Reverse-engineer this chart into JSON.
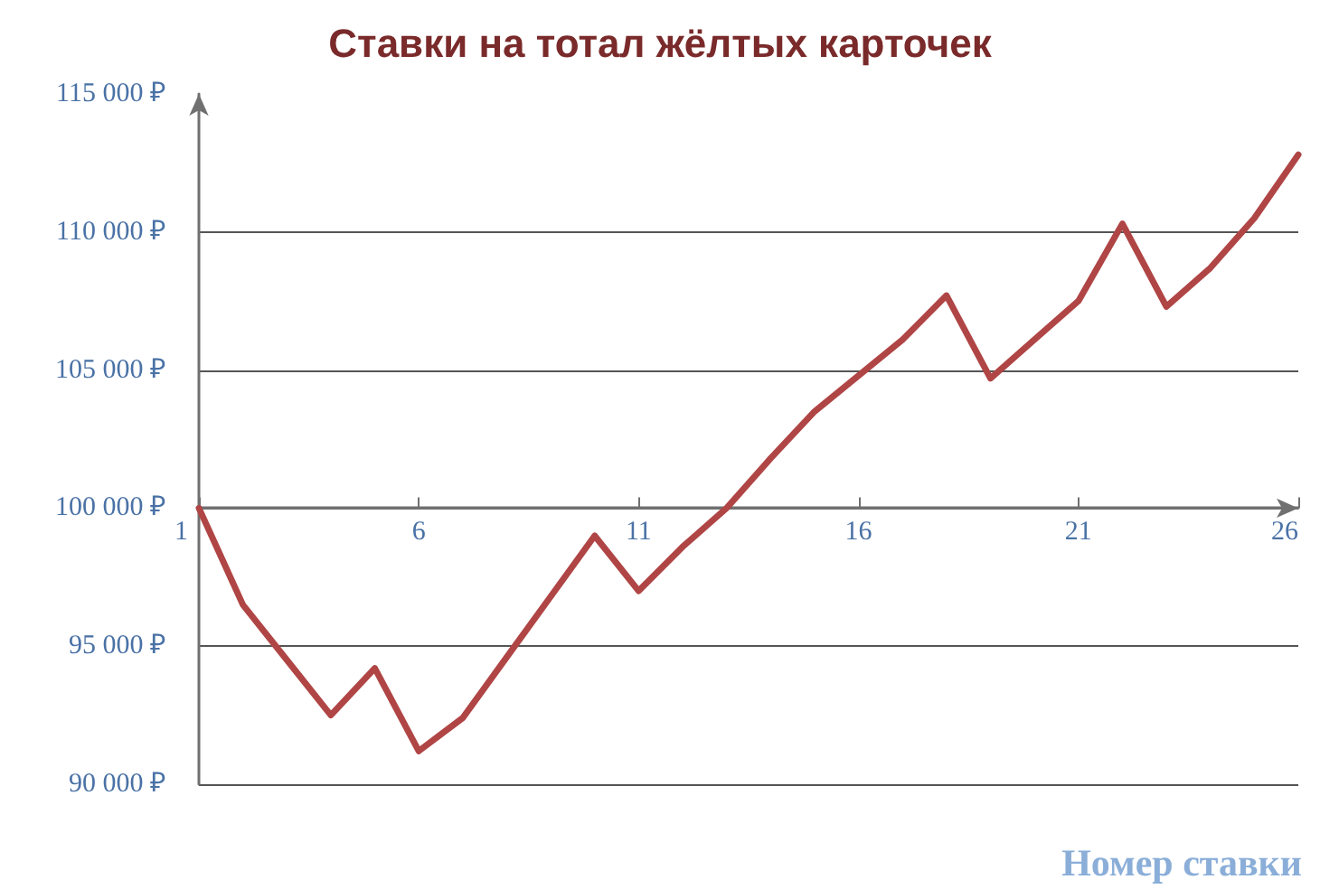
{
  "chart_data": {
    "type": "line",
    "title": "Ставки на тотал жёлтых карточек",
    "xlabel": "Номер ставки",
    "x": [
      1,
      2,
      3,
      4,
      5,
      6,
      7,
      8,
      9,
      10,
      11,
      12,
      13,
      14,
      15,
      16,
      17,
      18,
      19,
      20,
      21,
      22,
      23,
      24,
      25,
      26
    ],
    "series": [
      {
        "color": "#b04545",
        "values": [
          100000,
          96500,
          94500,
          92500,
          94200,
          91200,
          92400,
          94600,
          96800,
          99000,
          97000,
          98600,
          100000,
          101800,
          103500,
          104800,
          106100,
          107700,
          104700,
          106100,
          107500,
          110300,
          107300,
          108700,
          110500,
          112800
        ]
      }
    ],
    "xlim": [
      1,
      26
    ],
    "xticks": [
      1,
      6,
      11,
      16,
      21,
      26
    ],
    "ylim": [
      90000,
      115000
    ],
    "yticks": [
      {
        "value": 90000,
        "label": "90 000 ₽"
      },
      {
        "value": 95000,
        "label": "95 000 ₽"
      },
      {
        "value": 100000,
        "label": "100 000 ₽"
      },
      {
        "value": 105000,
        "label": "105 000 ₽"
      },
      {
        "value": 110000,
        "label": "110 000 ₽"
      },
      {
        "value": 115000,
        "label": "115 000 ₽"
      }
    ],
    "ref_lines": [
      {
        "axis": "y",
        "value": 100000,
        "color": "#707070"
      }
    ],
    "grid": "y",
    "marker": "none",
    "line_style": "solid"
  }
}
